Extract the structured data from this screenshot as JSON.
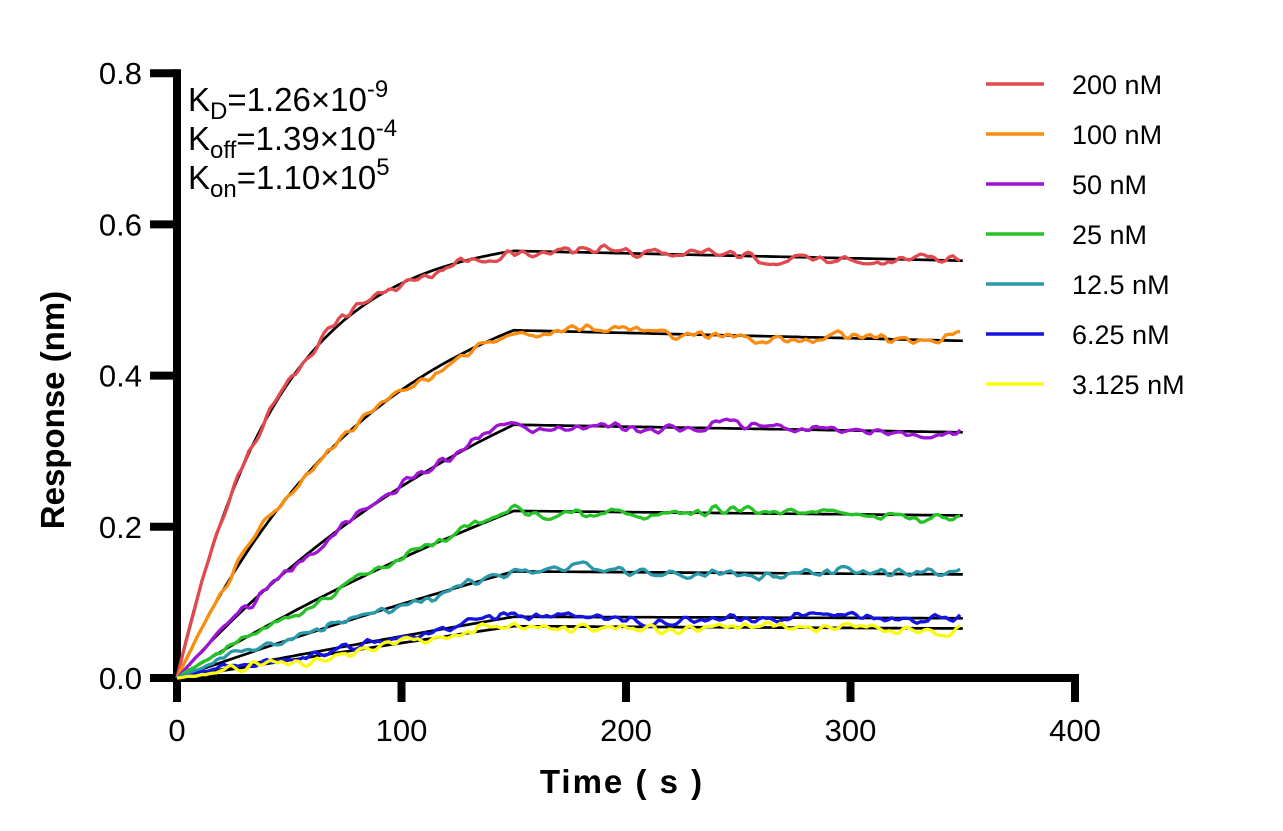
{
  "chart_data": {
    "type": "line",
    "title": "",
    "xlabel": "Time ( s )",
    "ylabel": "Response (nm)",
    "xlim": [
      0,
      400
    ],
    "ylim": [
      0,
      0.8
    ],
    "x_ticks": [
      {
        "v": 0,
        "label": "0"
      },
      {
        "v": 100,
        "label": "100"
      },
      {
        "v": 200,
        "label": "200"
      },
      {
        "v": 300,
        "label": "300"
      },
      {
        "v": 400,
        "label": "400"
      }
    ],
    "y_ticks": [
      {
        "v": 0.0,
        "label": "0.0"
      },
      {
        "v": 0.2,
        "label": "0.2"
      },
      {
        "v": 0.4,
        "label": "0.4"
      },
      {
        "v": 0.6,
        "label": "0.6"
      },
      {
        "v": 0.8,
        "label": "0.8"
      }
    ],
    "grid": false,
    "legend_position": "top-right",
    "association_end_s": 150,
    "trace_end_s": 350,
    "fit_color": "#000000",
    "noise_amplitude": 0.0085,
    "annotations": [
      {
        "name": "KD",
        "parts": [
          {
            "text": "K"
          },
          {
            "text": "D",
            "script": "sub"
          },
          {
            "text": "=1.26×10"
          },
          {
            "text": "-9",
            "script": "sup"
          }
        ]
      },
      {
        "name": "Koff",
        "parts": [
          {
            "text": "K"
          },
          {
            "text": "off",
            "script": "sub"
          },
          {
            "text": "=1.39×10"
          },
          {
            "text": "-4",
            "script": "sup"
          }
        ]
      },
      {
        "name": "Kon",
        "parts": [
          {
            "text": "K"
          },
          {
            "text": "on",
            "script": "sub"
          },
          {
            "text": "=1.10×10"
          },
          {
            "text": "5",
            "script": "sup"
          }
        ]
      }
    ],
    "series": [
      {
        "label": "200 nM",
        "color": "#E2494E",
        "response_at_150s": 0.565,
        "response_at_350s": 0.552,
        "k_obs": 0.0221
      },
      {
        "label": "100 nM",
        "color": "#FA8C0F",
        "response_at_150s": 0.46,
        "response_at_350s": 0.446,
        "k_obs": 0.0112
      },
      {
        "label": "50 nM",
        "color": "#9E14D3",
        "response_at_150s": 0.335,
        "response_at_350s": 0.325,
        "k_obs": 0.0057
      },
      {
        "label": "25 nM",
        "color": "#27C228",
        "response_at_150s": 0.221,
        "response_at_350s": 0.215,
        "k_obs": 0.003
      },
      {
        "label": "12.5 nM",
        "color": "#2B98A9",
        "response_at_150s": 0.141,
        "response_at_350s": 0.137,
        "k_obs": 0.0016
      },
      {
        "label": "6.25 nM",
        "color": "#1414DE",
        "response_at_150s": 0.081,
        "response_at_350s": 0.079,
        "k_obs": 0.00086
      },
      {
        "label": "3.125 nM",
        "color": "#FAFA0F",
        "response_at_150s": 0.0685,
        "response_at_350s": 0.0655,
        "k_obs": 0.00052
      }
    ]
  }
}
